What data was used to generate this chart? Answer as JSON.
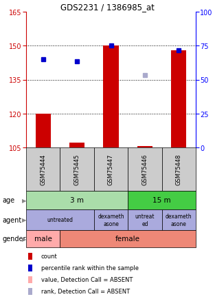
{
  "title": "GDS2231 / 1386985_at",
  "samples": [
    "GSM75444",
    "GSM75445",
    "GSM75447",
    "GSM75446",
    "GSM75448"
  ],
  "ylim_left": [
    105,
    165
  ],
  "ylim_right": [
    0,
    100
  ],
  "yticks_left": [
    105,
    120,
    135,
    150,
    165
  ],
  "yticks_right": [
    0,
    25,
    50,
    75,
    100
  ],
  "count_values": [
    120,
    107,
    150,
    105.5,
    148
  ],
  "percentile_values": [
    144,
    143,
    150,
    137,
    148
  ],
  "percentile_absent": [
    false,
    false,
    false,
    true,
    false
  ],
  "count_color": "#cc0000",
  "percentile_color": "#0000cc",
  "percentile_absent_color": "#aaaacc",
  "bar_base": 105,
  "age_color_3m": "#aaddaa",
  "age_color_15m": "#44cc44",
  "agent_color": "#aaaadd",
  "male_color": "#ffaaaa",
  "female_color": "#ee8877",
  "sample_bg_color": "#cccccc",
  "legend_items": [
    {
      "color": "#cc0000",
      "label": "count"
    },
    {
      "color": "#0000cc",
      "label": "percentile rank within the sample"
    },
    {
      "color": "#ffaaaa",
      "label": "value, Detection Call = ABSENT"
    },
    {
      "color": "#aaaacc",
      "label": "rank, Detection Call = ABSENT"
    }
  ]
}
